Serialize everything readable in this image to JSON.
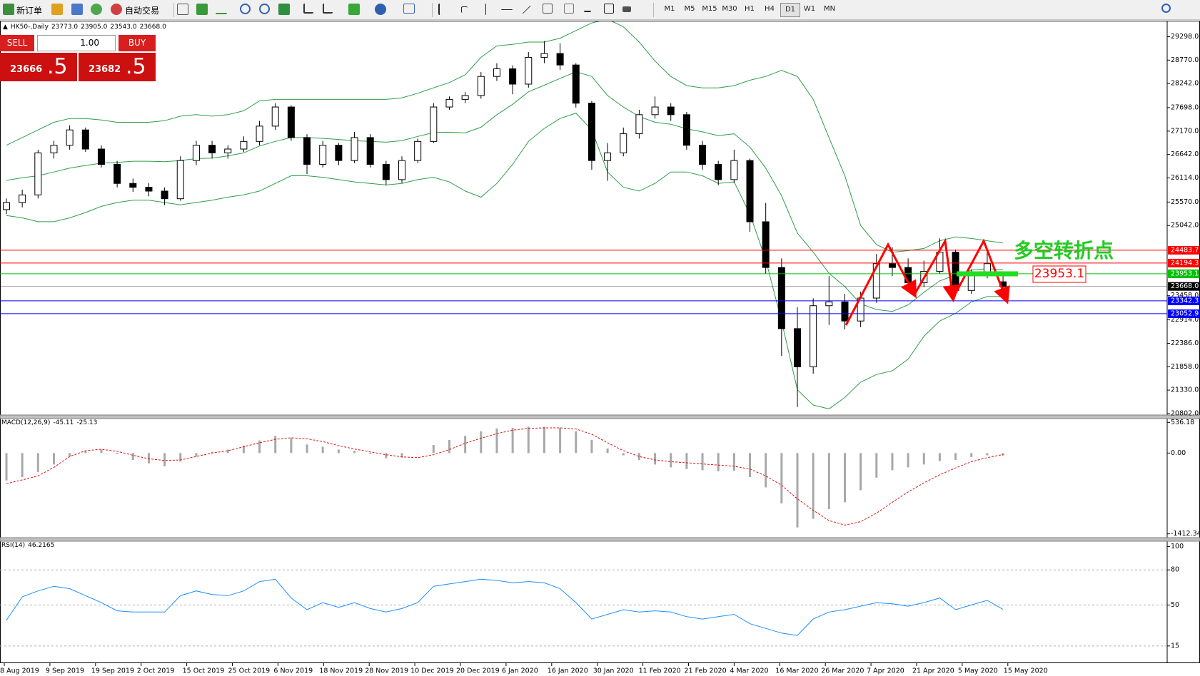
{
  "toolbar": {
    "new_order": "新订单",
    "auto_trading": "自动交易",
    "timeframes": [
      "M1",
      "M5",
      "M15",
      "M30",
      "H1",
      "H4",
      "D1",
      "W1",
      "MN"
    ]
  },
  "order_panel": {
    "sell": "SELL",
    "buy": "BUY",
    "lots": "1.00",
    "bid": "23666",
    "bid_fraction": ".5",
    "ask": "23682",
    "ask_fraction": ".5"
  },
  "x_axis": {
    "labels": [
      "8 Aug 2019",
      "9 Sep 2019",
      "19 Sep 2019",
      "2 Oct 2019",
      "15 Oct 2019",
      "25 Oct 2019",
      "6 Nov 2019",
      "18 Nov 2019",
      "28 Nov 2019",
      "10 Dec 2019",
      "20 Dec 2019",
      "6 Jan 2020",
      "16 Jan 2020",
      "30 Jan 2020",
      "11 Feb 2020",
      "21 Feb 2020",
      "4 Mar 2020",
      "16 Mar 2020",
      "26 Mar 2020",
      "7 Apr 2020",
      "21 Apr 2020",
      "5 May 2020",
      "15 May 2020"
    ]
  },
  "chart_data": [
    {
      "type": "candlestick",
      "title": "HK50-,Daily",
      "header": [
        "23773.0",
        "23905.0",
        "23543.0",
        "23668.0"
      ],
      "annotations": [
        "多空转折点",
        "23953.1"
      ],
      "ylim": [
        20769,
        29643
      ],
      "yticks": [
        {
          "value": 29298,
          "label": "29298.0"
        },
        {
          "value": 28770,
          "label": "28770.0"
        },
        {
          "value": 28242,
          "label": "28242.0"
        },
        {
          "value": 27698,
          "label": "27698.0"
        },
        {
          "value": 27170,
          "label": "27170.0"
        },
        {
          "value": 26642,
          "label": "26642.0"
        },
        {
          "value": 26114,
          "label": "26114.0"
        },
        {
          "value": 25570,
          "label": "25570.0"
        },
        {
          "value": 25042,
          "label": "25042.0"
        },
        {
          "value": 23458,
          "label": "23458.0"
        },
        {
          "value": 22914,
          "label": "22914.0"
        },
        {
          "value": 22386,
          "label": "22386.0"
        },
        {
          "value": 21858,
          "label": "21858.0"
        },
        {
          "value": 21330,
          "label": "21330.0"
        },
        {
          "value": 20802,
          "label": "20802.0"
        }
      ],
      "levels": [
        {
          "value": 24483.7,
          "label": "24483.7",
          "color": "#ff0000"
        },
        {
          "value": 24194.3,
          "label": "24194.3",
          "color": "#ff0000"
        },
        {
          "value": 23953.1,
          "label": "23953.1",
          "color": "#00c000"
        },
        {
          "value": 23668.0,
          "label": "23668.0",
          "color": "#000000"
        },
        {
          "value": 23342.3,
          "label": "23342.3",
          "color": "#0000ff"
        },
        {
          "value": 23052.9,
          "label": "23052.9",
          "color": "#0000ff"
        }
      ],
      "band_color": "#2e9e48",
      "ohlc": [
        [
          25400,
          25650,
          25300,
          25559
        ],
        [
          25559,
          25850,
          25450,
          25731
        ],
        [
          25731,
          26750,
          25650,
          26679
        ],
        [
          26679,
          26950,
          26550,
          26850
        ],
        [
          26850,
          27300,
          26750,
          27196
        ],
        [
          27196,
          27250,
          26700,
          26765
        ],
        [
          26765,
          26850,
          26350,
          26420
        ],
        [
          26420,
          26500,
          25900,
          25990
        ],
        [
          25990,
          26100,
          25800,
          25903
        ],
        [
          25903,
          26000,
          25700,
          25817
        ],
        [
          25817,
          25900,
          25500,
          25645
        ],
        [
          25645,
          26600,
          25600,
          26506
        ],
        [
          26506,
          26950,
          26400,
          26850
        ],
        [
          26850,
          26950,
          26550,
          26679
        ],
        [
          26679,
          26850,
          26550,
          26765
        ],
        [
          26765,
          27050,
          26700,
          26937
        ],
        [
          26937,
          27400,
          26850,
          27282
        ],
        [
          27282,
          27800,
          27200,
          27713
        ],
        [
          27713,
          27750,
          26950,
          27024
        ],
        [
          27024,
          27100,
          26200,
          26420
        ],
        [
          26420,
          26950,
          26350,
          26850
        ],
        [
          26850,
          26900,
          26400,
          26506
        ],
        [
          26506,
          27150,
          26450,
          27024
        ],
        [
          27024,
          27100,
          26350,
          26420
        ],
        [
          26420,
          26500,
          25950,
          26076
        ],
        [
          26076,
          26600,
          26000,
          26506
        ],
        [
          26506,
          27000,
          26450,
          26937
        ],
        [
          26937,
          27800,
          26900,
          27713
        ],
        [
          27713,
          27950,
          27650,
          27885
        ],
        [
          27885,
          28050,
          27800,
          27971
        ],
        [
          27971,
          28500,
          27900,
          28402
        ],
        [
          28402,
          28700,
          28300,
          28574
        ],
        [
          28574,
          28650,
          28000,
          28229
        ],
        [
          28229,
          28950,
          28150,
          28833
        ],
        [
          28833,
          29200,
          28700,
          28919
        ],
        [
          28919,
          29150,
          28550,
          28660
        ],
        [
          28660,
          28700,
          27700,
          27799
        ],
        [
          27799,
          27850,
          26300,
          26506
        ],
        [
          26506,
          26900,
          26050,
          26679
        ],
        [
          26679,
          27250,
          26600,
          27110
        ],
        [
          27110,
          27650,
          27000,
          27540
        ],
        [
          27540,
          27950,
          27450,
          27713
        ],
        [
          27713,
          27800,
          27400,
          27540
        ],
        [
          27540,
          27600,
          26750,
          26850
        ],
        [
          26850,
          26950,
          26300,
          26420
        ],
        [
          26420,
          26500,
          25950,
          26076
        ],
        [
          26076,
          26750,
          26000,
          26506
        ],
        [
          26506,
          26550,
          24900,
          25126
        ],
        [
          25126,
          25550,
          23950,
          24095
        ],
        [
          24095,
          24300,
          22100,
          22716
        ],
        [
          22716,
          23200,
          20950,
          21855
        ],
        [
          21855,
          23400,
          21700,
          23233
        ],
        [
          23233,
          23900,
          22800,
          23319
        ],
        [
          23319,
          23500,
          22700,
          22888
        ],
        [
          22888,
          23550,
          22750,
          23405
        ],
        [
          23405,
          24400,
          23300,
          24181
        ],
        [
          24181,
          24550,
          23900,
          24095
        ],
        [
          24095,
          24300,
          23600,
          23750
        ],
        [
          23750,
          24250,
          23650,
          24009
        ],
        [
          24009,
          24750,
          23950,
          24440
        ],
        [
          24440,
          24500,
          23450,
          23578
        ],
        [
          23578,
          24050,
          23500,
          23922
        ],
        [
          23922,
          24450,
          23850,
          24181
        ],
        [
          23773,
          23905,
          23543,
          23668
        ]
      ],
      "bands": {
        "upper": [
          26851,
          27024,
          27196,
          27368,
          27454,
          27454,
          27420,
          27368,
          27368,
          27368,
          27403,
          27506,
          27541,
          27506,
          27541,
          27627,
          27851,
          27885,
          27885,
          27885,
          27885,
          27885,
          27885,
          27885,
          27885,
          27920,
          28023,
          28144,
          28264,
          28437,
          28833,
          29091,
          29126,
          29177,
          29177,
          29264,
          29436,
          29608,
          29694,
          29522,
          29177,
          28747,
          28402,
          28195,
          28144,
          28144,
          28195,
          28316,
          28402,
          28540,
          28402,
          27885,
          27024,
          26162,
          25042,
          24611,
          24439,
          24474,
          24525,
          24698,
          24784,
          24749,
          24698,
          24646
        ],
        "middle": [
          26058,
          26119,
          26162,
          26248,
          26334,
          26395,
          26446,
          26464,
          26490,
          26490,
          26481,
          26507,
          26550,
          26559,
          26611,
          26679,
          26835,
          26938,
          27024,
          27024,
          27007,
          26981,
          26955,
          26938,
          26920,
          26955,
          27050,
          27136,
          27144,
          27128,
          27257,
          27541,
          27773,
          28057,
          28204,
          28359,
          28506,
          28402,
          27971,
          27713,
          27498,
          27369,
          27325,
          27222,
          27153,
          27067,
          27110,
          26808,
          26335,
          25714,
          24870,
          24439,
          23966,
          23664,
          23276,
          23147,
          23104,
          23251,
          23535,
          23793,
          23923,
          24034,
          24069,
          24043
        ],
        "lower": [
          25266,
          25214,
          25128,
          25128,
          25214,
          25335,
          25473,
          25559,
          25611,
          25611,
          25559,
          25508,
          25559,
          25611,
          25680,
          25731,
          25818,
          25990,
          26162,
          26162,
          26128,
          26076,
          26024,
          25990,
          25955,
          25990,
          26076,
          26128,
          26024,
          25818,
          25680,
          25990,
          26420,
          26937,
          27230,
          27454,
          27575,
          27196,
          26248,
          25904,
          25818,
          25990,
          26248,
          26248,
          26162,
          25990,
          26024,
          25300,
          24267,
          22888,
          21338,
          20993,
          20907,
          21165,
          21510,
          21682,
          21768,
          22027,
          22544,
          22888,
          23061,
          23319,
          23440,
          23440
        ]
      }
    },
    {
      "type": "macd",
      "title": "MACD(12,26,9)",
      "header": [
        "-45.11",
        "-25.13"
      ],
      "ylim": [
        -1479,
        590
      ],
      "yticks": [
        536.18,
        {
          "value": 0,
          "label": "0.00"
        },
        -1412.34
      ],
      "histogram_color": "#a8a8a8",
      "signal_color": "#e01010",
      "histogram": [
        -480,
        -420,
        -330,
        -200,
        -60,
        40,
        60,
        -20,
        -120,
        -180,
        -230,
        -150,
        -60,
        20,
        60,
        130,
        220,
        300,
        260,
        150,
        110,
        60,
        40,
        -20,
        -90,
        -80,
        0,
        140,
        230,
        300,
        380,
        430,
        440,
        460,
        460,
        440,
        380,
        230,
        80,
        -40,
        -120,
        -200,
        -250,
        -280,
        -300,
        -320,
        -310,
        -420,
        -600,
        -880,
        -1300,
        -1150,
        -980,
        -860,
        -650,
        -430,
        -300,
        -250,
        -200,
        -140,
        -120,
        -70,
        -40,
        -45.11
      ],
      "signal": [
        -534,
        -470,
        -400,
        -250,
        -60,
        40,
        67,
        30,
        -40,
        -100,
        -130,
        -120,
        -60,
        0,
        40,
        110,
        180,
        240,
        267,
        250,
        200,
        130,
        70,
        20,
        -30,
        -67,
        -80,
        -30,
        60,
        170,
        260,
        340,
        400,
        430,
        440,
        440,
        420,
        330,
        180,
        40,
        -60,
        -120,
        -150,
        -170,
        -190,
        -210,
        -230,
        -280,
        -400,
        -560,
        -800,
        -1000,
        -1180,
        -1260,
        -1200,
        -1050,
        -860,
        -680,
        -520,
        -380,
        -260,
        -150,
        -80,
        -25.13
      ]
    },
    {
      "type": "line",
      "title": "RSI(14)",
      "header": [
        "46.2165"
      ],
      "ylim": [
        1.5,
        103.9
      ],
      "yticks": [
        100,
        80,
        50,
        15
      ],
      "color": "#1e8fff",
      "values": [
        37,
        57,
        62,
        66,
        64,
        58,
        52,
        45,
        44,
        44,
        44,
        58,
        62,
        59,
        58,
        62,
        70,
        72,
        56,
        46,
        52,
        48,
        52,
        47,
        44,
        47,
        52,
        66,
        68,
        70,
        72,
        71,
        69,
        70,
        69,
        64,
        52,
        38,
        42,
        46,
        44,
        45,
        44,
        40,
        38,
        40,
        42,
        34,
        30,
        26,
        24,
        38,
        44,
        46,
        49,
        52,
        51,
        49,
        52,
        56,
        46,
        50,
        54,
        46.2165
      ]
    }
  ]
}
